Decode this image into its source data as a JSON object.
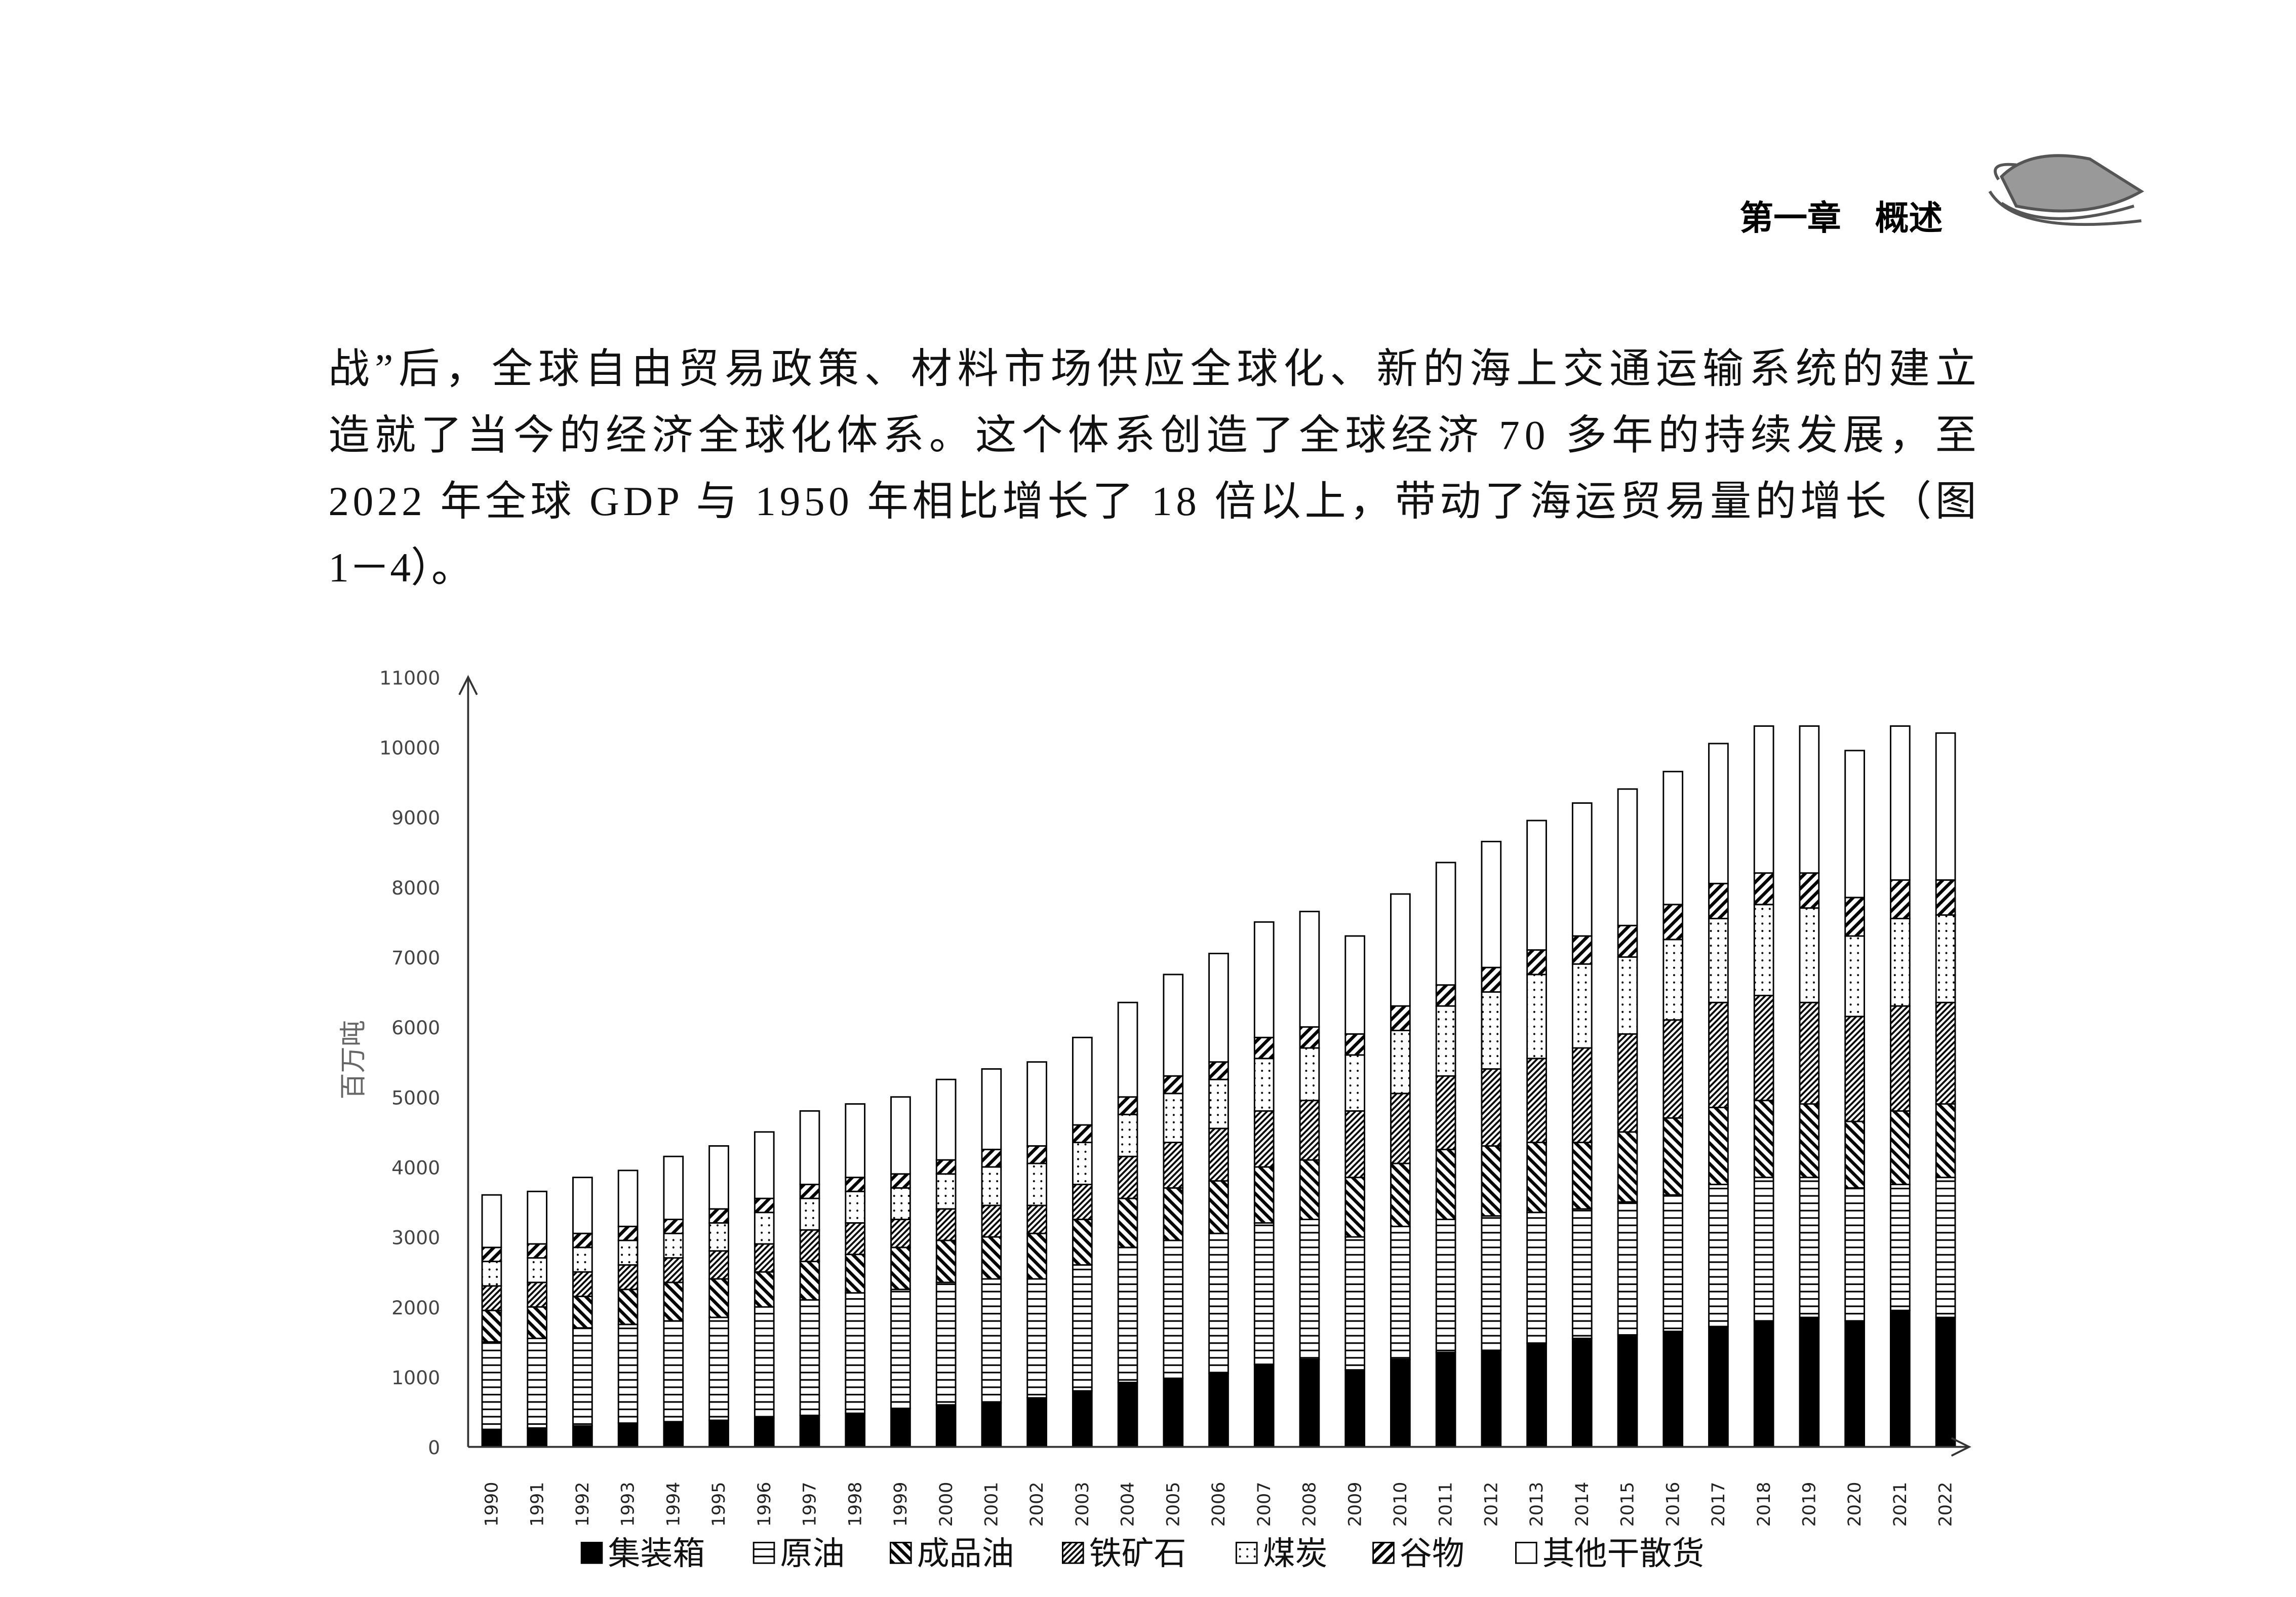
{
  "header": {
    "title": "第一章　概述"
  },
  "paragraph": {
    "lines": [
      "战”后，全球自由贸易政策、材料市场供应全球化、新的海上交通运输系统的建立",
      "造就了当今的经济全球化体系。这个体系创造了全球经济 70 多年的持续发展，至",
      "2022 年全球 GDP 与 1950 年相比增长了 18 倍以上，带动了海运贸易量的增长（图",
      "1－4）。"
    ]
  },
  "chart_data": {
    "type": "stacked_bar",
    "y_label": "百万吨",
    "categories": [
      "1990",
      "1991",
      "1992",
      "1993",
      "1994",
      "1995",
      "1996",
      "1997",
      "1998",
      "1999",
      "2000",
      "2001",
      "2002",
      "2003",
      "2004",
      "2005",
      "2006",
      "2007",
      "2008",
      "2009",
      "2010",
      "2011",
      "2012",
      "2013",
      "2014",
      "2015",
      "2016",
      "2017",
      "2018",
      "2019",
      "2020",
      "2021",
      "2022"
    ],
    "ylim": [
      0,
      11000
    ],
    "yticks": [
      0,
      1000,
      2000,
      3000,
      4000,
      5000,
      6000,
      7000,
      8000,
      9000,
      10000,
      11000
    ],
    "series": [
      {
        "name": "集装箱",
        "color": "#000000",
        "pattern": "solid",
        "values": [
          250,
          270,
          300,
          340,
          360,
          380,
          410,
          450,
          480,
          550,
          600,
          630,
          700,
          800,
          920,
          980,
          1050,
          1180,
          1250,
          1100,
          1250,
          1350,
          1380,
          1480,
          1550,
          1600,
          1650,
          1720,
          1800,
          1850,
          1800,
          1950,
          1850
        ]
      },
      {
        "name": "原油",
        "color": "#000000",
        "pattern": "hlines",
        "values": [
          1250,
          1280,
          1400,
          1410,
          1440,
          1470,
          1590,
          1650,
          1720,
          1700,
          1750,
          1770,
          1700,
          1800,
          1930,
          1970,
          2000,
          2020,
          2000,
          1900,
          1900,
          1900,
          1920,
          1870,
          1850,
          1900,
          1950,
          2030,
          2050,
          2000,
          1900,
          1800,
          2000
        ]
      },
      {
        "name": "成品油",
        "color": "#000000",
        "pattern": "bdiag",
        "values": [
          450,
          450,
          450,
          500,
          550,
          550,
          500,
          550,
          550,
          600,
          600,
          600,
          650,
          650,
          700,
          750,
          750,
          800,
          850,
          850,
          900,
          1000,
          1000,
          1000,
          950,
          1000,
          1100,
          1100,
          1100,
          1050,
          950,
          1050,
          1050
        ]
      },
      {
        "name": "铁矿石",
        "color": "#000000",
        "pattern": "cross",
        "values": [
          350,
          350,
          350,
          350,
          350,
          400,
          400,
          450,
          450,
          400,
          450,
          450,
          400,
          500,
          600,
          650,
          750,
          800,
          850,
          950,
          1000,
          1050,
          1100,
          1200,
          1350,
          1400,
          1400,
          1500,
          1500,
          1450,
          1500,
          1500,
          1450
        ]
      },
      {
        "name": "煤炭",
        "color": "#000000",
        "pattern": "dots",
        "values": [
          350,
          350,
          350,
          350,
          350,
          400,
          450,
          450,
          450,
          450,
          500,
          550,
          600,
          600,
          600,
          700,
          700,
          750,
          750,
          800,
          900,
          1000,
          1100,
          1200,
          1200,
          1100,
          1150,
          1200,
          1300,
          1350,
          1150,
          1250,
          1250
        ]
      },
      {
        "name": "谷物",
        "color": "#000000",
        "pattern": "fdiag",
        "values": [
          200,
          200,
          200,
          200,
          200,
          200,
          200,
          200,
          200,
          200,
          200,
          250,
          250,
          250,
          250,
          250,
          250,
          300,
          300,
          300,
          350,
          300,
          350,
          350,
          400,
          450,
          500,
          500,
          450,
          500,
          550,
          550,
          500
        ]
      },
      {
        "name": "其他干散货",
        "color": "#000000",
        "pattern": "none",
        "values": [
          750,
          750,
          800,
          800,
          900,
          900,
          950,
          1050,
          1050,
          1100,
          1150,
          1150,
          1200,
          1250,
          1350,
          1450,
          1550,
          1650,
          1650,
          1400,
          1600,
          1750,
          1800,
          1850,
          1900,
          1950,
          1900,
          2000,
          2100,
          2100,
          2100,
          2200,
          2100
        ]
      }
    ]
  }
}
